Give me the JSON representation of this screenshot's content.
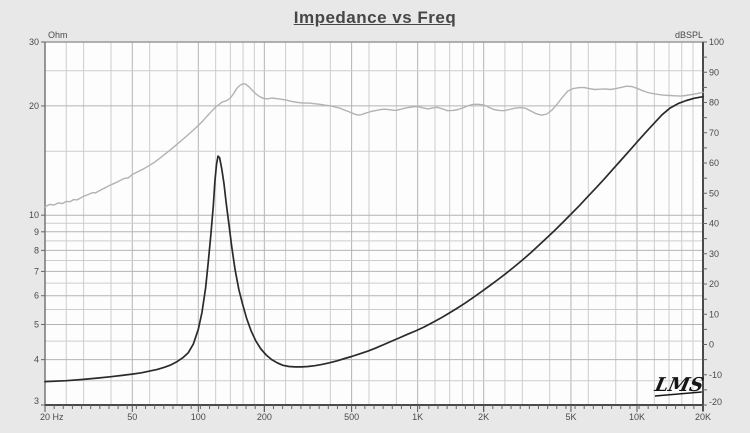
{
  "title": "Impedance vs Freq",
  "logo": "LMS",
  "colors": {
    "background": "#e8e8e8",
    "plot_background": "#fdfdfd",
    "grid_minor": "#cdcdcd",
    "grid_major": "#b4b4b4",
    "border_light": "#999999",
    "border_dark": "#4a4a4a",
    "impedance_curve": "#2a2a2a",
    "spl_curve": "#b2b2b2",
    "label_text": "#4a4a4a"
  },
  "chart_data": {
    "type": "line",
    "title": "Impedance vs Freq",
    "grid": "on",
    "legend": "none",
    "x_axis": {
      "label": "Hz",
      "scale": "log",
      "min": 20,
      "max": 20000,
      "tick_freqs": [
        20,
        50,
        100,
        200,
        500,
        1000,
        2000,
        5000,
        10000,
        20000
      ],
      "tick_labels": [
        "20 Hz",
        "50",
        "100",
        "200",
        "500",
        "1K",
        "2K",
        "5K",
        "10K",
        "20K"
      ]
    },
    "y_left": {
      "label": "Ohm",
      "scale": "log",
      "min": 3,
      "max": 30,
      "ticks": [
        30,
        20,
        10,
        9,
        8,
        7,
        6,
        5,
        4,
        3
      ]
    },
    "y_right": {
      "label": "dBSPL",
      "scale": "linear",
      "min": -20,
      "max": 100,
      "ticks": [
        100,
        90,
        80,
        70,
        60,
        50,
        40,
        30,
        20,
        10,
        0,
        -10,
        -20
      ]
    },
    "series": [
      {
        "name": "impedance",
        "axis": "left",
        "unit": "Ohm",
        "color": "#2a2a2a",
        "points": [
          [
            20,
            3.48
          ],
          [
            25,
            3.5
          ],
          [
            30,
            3.53
          ],
          [
            35,
            3.56
          ],
          [
            40,
            3.59
          ],
          [
            45,
            3.62
          ],
          [
            50,
            3.65
          ],
          [
            55,
            3.68
          ],
          [
            60,
            3.72
          ],
          [
            65,
            3.76
          ],
          [
            70,
            3.81
          ],
          [
            75,
            3.87
          ],
          [
            80,
            3.95
          ],
          [
            85,
            4.05
          ],
          [
            90,
            4.18
          ],
          [
            95,
            4.42
          ],
          [
            100,
            4.85
          ],
          [
            104,
            5.4
          ],
          [
            108,
            6.3
          ],
          [
            111,
            7.4
          ],
          [
            114,
            8.8
          ],
          [
            117,
            10.6
          ],
          [
            119,
            12.4
          ],
          [
            121,
            13.8
          ],
          [
            123,
            14.55
          ],
          [
            125,
            14.4
          ],
          [
            128,
            13.4
          ],
          [
            131,
            12.2
          ],
          [
            134,
            10.8
          ],
          [
            138,
            9.4
          ],
          [
            142,
            8.2
          ],
          [
            147,
            7.1
          ],
          [
            153,
            6.25
          ],
          [
            159,
            5.7
          ],
          [
            166,
            5.2
          ],
          [
            174,
            4.8
          ],
          [
            183,
            4.5
          ],
          [
            193,
            4.28
          ],
          [
            204,
            4.12
          ],
          [
            216,
            4.0
          ],
          [
            229,
            3.92
          ],
          [
            243,
            3.86
          ],
          [
            259,
            3.83
          ],
          [
            276,
            3.82
          ],
          [
            296,
            3.82
          ],
          [
            316,
            3.83
          ],
          [
            340,
            3.85
          ],
          [
            366,
            3.88
          ],
          [
            396,
            3.92
          ],
          [
            430,
            3.97
          ],
          [
            465,
            4.03
          ],
          [
            500,
            4.08
          ],
          [
            545,
            4.15
          ],
          [
            592,
            4.22
          ],
          [
            642,
            4.3
          ],
          [
            700,
            4.4
          ],
          [
            762,
            4.5
          ],
          [
            830,
            4.6
          ],
          [
            901,
            4.7
          ],
          [
            980,
            4.8
          ],
          [
            1070,
            4.92
          ],
          [
            1162,
            5.05
          ],
          [
            1270,
            5.2
          ],
          [
            1382,
            5.36
          ],
          [
            1503,
            5.53
          ],
          [
            1640,
            5.72
          ],
          [
            1784,
            5.92
          ],
          [
            1950,
            6.15
          ],
          [
            2122,
            6.38
          ],
          [
            2310,
            6.63
          ],
          [
            2520,
            6.9
          ],
          [
            2750,
            7.2
          ],
          [
            3000,
            7.52
          ],
          [
            3270,
            7.87
          ],
          [
            3560,
            8.25
          ],
          [
            3880,
            8.66
          ],
          [
            4230,
            9.1
          ],
          [
            4610,
            9.58
          ],
          [
            5030,
            10.1
          ],
          [
            5480,
            10.65
          ],
          [
            5970,
            11.25
          ],
          [
            6510,
            11.9
          ],
          [
            7100,
            12.6
          ],
          [
            7740,
            13.35
          ],
          [
            8430,
            14.15
          ],
          [
            9190,
            15.0
          ],
          [
            10000,
            15.9
          ],
          [
            10900,
            16.85
          ],
          [
            11900,
            17.85
          ],
          [
            13000,
            18.9
          ],
          [
            14100,
            19.7
          ],
          [
            15400,
            20.3
          ],
          [
            16800,
            20.7
          ],
          [
            18300,
            21.0
          ],
          [
            20000,
            21.2
          ]
        ]
      },
      {
        "name": "spl-response",
        "axis": "right",
        "unit": "dBSPL",
        "color": "#b2b2b2",
        "points": [
          [
            20,
            45.5
          ],
          [
            21,
            46.3
          ],
          [
            22,
            46.1
          ],
          [
            23,
            46.8
          ],
          [
            24,
            46.6
          ],
          [
            25,
            47.3
          ],
          [
            26,
            47.2
          ],
          [
            27,
            47.9
          ],
          [
            28,
            47.8
          ],
          [
            30,
            49.0
          ],
          [
            31,
            49.4
          ],
          [
            33,
            50.2
          ],
          [
            34,
            50.1
          ],
          [
            36,
            51.1
          ],
          [
            38,
            52.0
          ],
          [
            40,
            52.8
          ],
          [
            42,
            53.5
          ],
          [
            44,
            54.2
          ],
          [
            46,
            54.9
          ],
          [
            48,
            55.1
          ],
          [
            50,
            56.2
          ],
          [
            53,
            57.1
          ],
          [
            56,
            58.0
          ],
          [
            59,
            58.9
          ],
          [
            63,
            60.2
          ],
          [
            67,
            61.7
          ],
          [
            71,
            63.1
          ],
          [
            75,
            64.5
          ],
          [
            80,
            66.2
          ],
          [
            85,
            67.8
          ],
          [
            90,
            69.4
          ],
          [
            95,
            70.9
          ],
          [
            100,
            72.4
          ],
          [
            105,
            74.0
          ],
          [
            110,
            75.6
          ],
          [
            115,
            77.1
          ],
          [
            120,
            78.5
          ],
          [
            125,
            79.5
          ],
          [
            128,
            80.1
          ],
          [
            132,
            80.4
          ],
          [
            136,
            80.8
          ],
          [
            140,
            81.5
          ],
          [
            145,
            83.0
          ],
          [
            150,
            84.7
          ],
          [
            155,
            85.7
          ],
          [
            160,
            86.2
          ],
          [
            165,
            86.0
          ],
          [
            170,
            85.2
          ],
          [
            176,
            84.1
          ],
          [
            182,
            83.0
          ],
          [
            190,
            82.0
          ],
          [
            198,
            81.4
          ],
          [
            207,
            81.2
          ],
          [
            216,
            81.5
          ],
          [
            226,
            81.3
          ],
          [
            238,
            81.1
          ],
          [
            252,
            80.8
          ],
          [
            268,
            80.3
          ],
          [
            285,
            80.0
          ],
          [
            302,
            79.8
          ],
          [
            320,
            79.8
          ],
          [
            338,
            79.6
          ],
          [
            358,
            79.4
          ],
          [
            378,
            79.1
          ],
          [
            400,
            78.9
          ],
          [
            420,
            78.5
          ],
          [
            442,
            78.1
          ],
          [
            465,
            77.5
          ],
          [
            488,
            76.9
          ],
          [
            510,
            76.3
          ],
          [
            530,
            75.9
          ],
          [
            550,
            75.9
          ],
          [
            570,
            76.3
          ],
          [
            592,
            76.7
          ],
          [
            618,
            77.1
          ],
          [
            648,
            77.4
          ],
          [
            680,
            77.7
          ],
          [
            715,
            77.8
          ],
          [
            750,
            77.6
          ],
          [
            790,
            77.4
          ],
          [
            830,
            77.7
          ],
          [
            875,
            78.1
          ],
          [
            920,
            78.4
          ],
          [
            965,
            78.6
          ],
          [
            1010,
            78.6
          ],
          [
            1060,
            78.2
          ],
          [
            1115,
            77.9
          ],
          [
            1170,
            78.2
          ],
          [
            1230,
            78.4
          ],
          [
            1300,
            77.9
          ],
          [
            1370,
            77.3
          ],
          [
            1450,
            77.4
          ],
          [
            1530,
            77.7
          ],
          [
            1620,
            78.3
          ],
          [
            1710,
            79.0
          ],
          [
            1800,
            79.4
          ],
          [
            1900,
            79.4
          ],
          [
            2000,
            79.2
          ],
          [
            2110,
            78.4
          ],
          [
            2230,
            77.7
          ],
          [
            2350,
            77.4
          ],
          [
            2480,
            77.3
          ],
          [
            2620,
            77.7
          ],
          [
            2770,
            78.1
          ],
          [
            2930,
            78.3
          ],
          [
            3100,
            78.1
          ],
          [
            3280,
            77.2
          ],
          [
            3470,
            76.3
          ],
          [
            3670,
            75.8
          ],
          [
            3880,
            76.2
          ],
          [
            4100,
            77.5
          ],
          [
            4330,
            79.5
          ],
          [
            4580,
            81.8
          ],
          [
            4840,
            83.8
          ],
          [
            5120,
            84.6
          ],
          [
            5410,
            84.9
          ],
          [
            5720,
            85.0
          ],
          [
            6050,
            84.6
          ],
          [
            6400,
            84.3
          ],
          [
            6770,
            84.4
          ],
          [
            7160,
            84.5
          ],
          [
            7570,
            84.3
          ],
          [
            8000,
            84.6
          ],
          [
            8460,
            85.0
          ],
          [
            8950,
            85.4
          ],
          [
            9460,
            85.3
          ],
          [
            10000,
            84.7
          ],
          [
            10600,
            83.9
          ],
          [
            11200,
            83.3
          ],
          [
            11900,
            82.9
          ],
          [
            12600,
            82.6
          ],
          [
            13300,
            82.4
          ],
          [
            14100,
            82.3
          ],
          [
            14900,
            82.2
          ],
          [
            15800,
            82.1
          ],
          [
            16700,
            82.3
          ],
          [
            17700,
            82.6
          ],
          [
            18700,
            82.9
          ],
          [
            19800,
            83.3
          ],
          [
            20000,
            83.4
          ]
        ]
      }
    ]
  }
}
